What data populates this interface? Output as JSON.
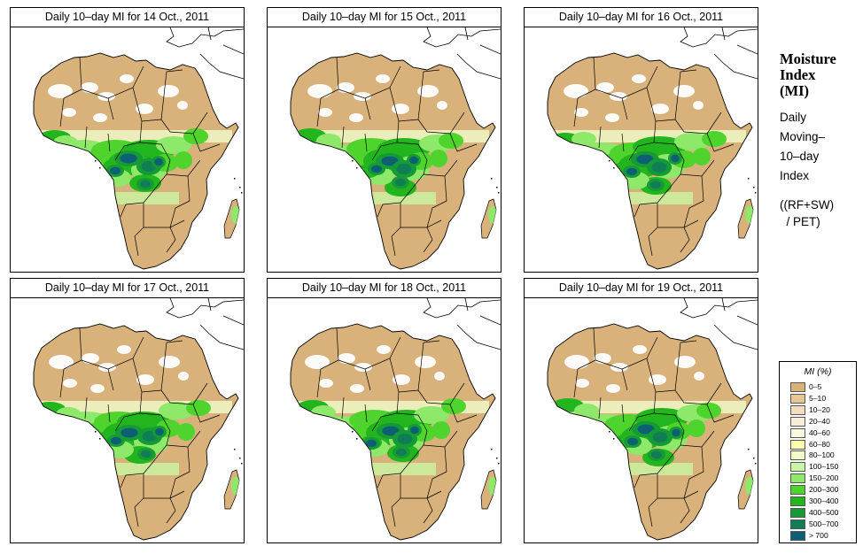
{
  "panels": [
    {
      "title": "Daily 10–day MI for  14 Oct., 2011",
      "variant": 0
    },
    {
      "title": "Daily 10–day MI for  15 Oct., 2011",
      "variant": 1
    },
    {
      "title": "Daily 10–day MI for  16 Oct., 2011",
      "variant": 2
    },
    {
      "title": "Daily 10–day MI for  17 Oct., 2011",
      "variant": 3
    },
    {
      "title": "Daily 10–day MI for  18 Oct., 2011",
      "variant": 4
    },
    {
      "title": "Daily 10–day MI for  19 Oct., 2011",
      "variant": 5
    }
  ],
  "sidebar": {
    "title_lines": [
      "Moisture",
      "Index",
      "(MI)"
    ],
    "desc_lines": [
      "Daily",
      "Moving–",
      "10–day",
      "Index"
    ],
    "formula_lines": [
      "((RF+SW)",
      "  / PET)"
    ]
  },
  "legend": {
    "title": "MI (%)",
    "items": [
      {
        "label": "0–5",
        "color": "#d8b27a"
      },
      {
        "label": "5–10",
        "color": "#e6c695"
      },
      {
        "label": "10–20",
        "color": "#f1ddbb"
      },
      {
        "label": "20–40",
        "color": "#f8edd6"
      },
      {
        "label": "40–60",
        "color": "#fbf8df"
      },
      {
        "label": "60–80",
        "color": "#fffeb0"
      },
      {
        "label": "80–100",
        "color": "#f0fccb"
      },
      {
        "label": "100–150",
        "color": "#c9f5a4"
      },
      {
        "label": "150–200",
        "color": "#8ee86a"
      },
      {
        "label": "200–300",
        "color": "#4fd42d"
      },
      {
        "label": "300–400",
        "color": "#22b51e"
      },
      {
        "label": "400–500",
        "color": "#159a36"
      },
      {
        "label": "500–700",
        "color": "#0f7e55"
      },
      {
        "label": "> 700",
        "color": "#0d5f74"
      }
    ]
  }
}
